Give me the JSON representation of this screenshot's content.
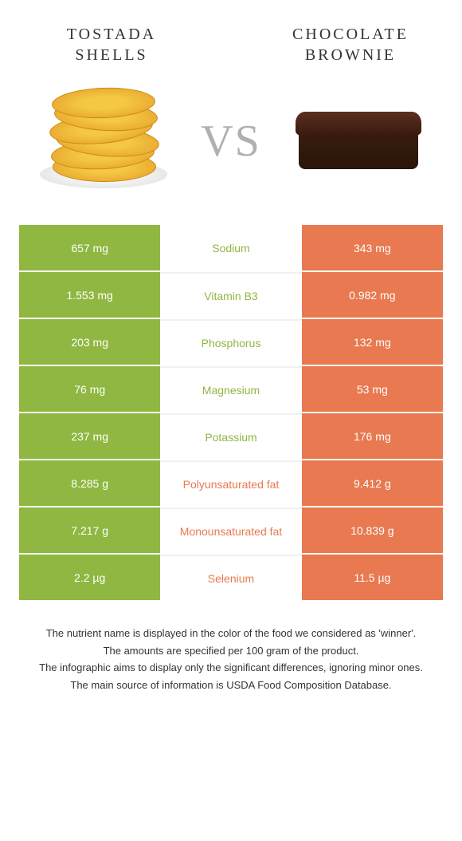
{
  "colors": {
    "green": "#8fb741",
    "orange": "#e87950",
    "gray_text": "#333333"
  },
  "header": {
    "left_title": "TOSTADA SHELLS",
    "right_title": "CHOCOLATE BROWNIE",
    "vs": "VS"
  },
  "rows": [
    {
      "left": "657 mg",
      "name": "Sodium",
      "right": "343 mg",
      "winner": "left"
    },
    {
      "left": "1.553 mg",
      "name": "Vitamin B3",
      "right": "0.982 mg",
      "winner": "left"
    },
    {
      "left": "203 mg",
      "name": "Phosphorus",
      "right": "132 mg",
      "winner": "left"
    },
    {
      "left": "76 mg",
      "name": "Magnesium",
      "right": "53 mg",
      "winner": "left"
    },
    {
      "left": "237 mg",
      "name": "Potassium",
      "right": "176 mg",
      "winner": "left"
    },
    {
      "left": "8.285 g",
      "name": "Polyunsaturated fat",
      "right": "9.412 g",
      "winner": "right"
    },
    {
      "left": "7.217 g",
      "name": "Monounsaturated fat",
      "right": "10.839 g",
      "winner": "right"
    },
    {
      "left": "2.2 µg",
      "name": "Selenium",
      "right": "11.5 µg",
      "winner": "right"
    }
  ],
  "footer": {
    "line1": "The nutrient name is displayed in the color of the food we considered as 'winner'.",
    "line2": "The amounts are specified per 100 gram of the product.",
    "line3": "The infographic aims to display only the significant differences, ignoring minor ones.",
    "line4": "The main source of information is USDA Food Composition Database."
  }
}
